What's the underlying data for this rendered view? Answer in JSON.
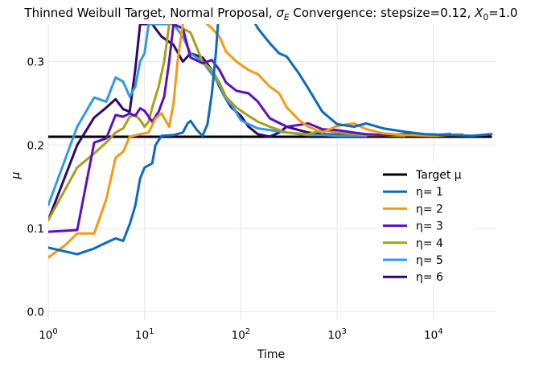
{
  "chart_data": {
    "type": "line",
    "title": "Thinned Weibull Target, Normal Proposal, σ_E Convergence: stepsize=0.12, X_0=1.0",
    "title_parts": {
      "prefix": "Thinned Weibull Target, Normal Proposal, ",
      "sigma": "σ",
      "sigma_sub": "E",
      "middle": " Convergence: stepsize=0.12, ",
      "x": "X",
      "x_sub": "0",
      "suffix": "=1.0"
    },
    "xlabel": "Time",
    "ylabel": "μ",
    "x_scale": "log",
    "xlim": [
      1,
      45000
    ],
    "ylim": [
      -0.01,
      0.345
    ],
    "x_ticks": [
      {
        "value": 1,
        "base": "10",
        "exp": "0"
      },
      {
        "value": 10,
        "base": "10",
        "exp": "1"
      },
      {
        "value": 100,
        "base": "10",
        "exp": "2"
      },
      {
        "value": 1000,
        "base": "10",
        "exp": "3"
      },
      {
        "value": 10000,
        "base": "10",
        "exp": "4"
      }
    ],
    "y_ticks": [
      {
        "value": 0.0,
        "label": "0.0"
      },
      {
        "value": 0.1,
        "label": "0.1"
      },
      {
        "value": 0.2,
        "label": "0.2"
      },
      {
        "value": 0.3,
        "label": "0.3"
      }
    ],
    "grid": true,
    "legend_position": "center-right",
    "target": {
      "name": "Target μ",
      "value": 0.21,
      "color": "#000000"
    },
    "series": [
      {
        "name": "η= 1",
        "color": "#0a6bbf",
        "points": [
          [
            1,
            0.077
          ],
          [
            2,
            0.069
          ],
          [
            3,
            0.076
          ],
          [
            4,
            0.083
          ],
          [
            5,
            0.088
          ],
          [
            6,
            0.085
          ],
          [
            7,
            0.105
          ],
          [
            8,
            0.127
          ],
          [
            9,
            0.16
          ],
          [
            10,
            0.173
          ],
          [
            12,
            0.178
          ],
          [
            13,
            0.2
          ],
          [
            15,
            0.211
          ],
          [
            20,
            0.212
          ],
          [
            25,
            0.215
          ],
          [
            28,
            0.226
          ],
          [
            30,
            0.229
          ],
          [
            35,
            0.218
          ],
          [
            40,
            0.211
          ],
          [
            45,
            0.225
          ],
          [
            50,
            0.262
          ],
          [
            55,
            0.31
          ],
          [
            60,
            0.37
          ],
          [
            100,
            0.38
          ],
          [
            120,
            0.36
          ],
          [
            150,
            0.34
          ],
          [
            200,
            0.322
          ],
          [
            250,
            0.31
          ],
          [
            300,
            0.306
          ],
          [
            400,
            0.286
          ],
          [
            500,
            0.268
          ],
          [
            700,
            0.24
          ],
          [
            1000,
            0.225
          ],
          [
            1500,
            0.222
          ],
          [
            2000,
            0.226
          ],
          [
            3000,
            0.22
          ],
          [
            5000,
            0.216
          ],
          [
            8000,
            0.213
          ],
          [
            15000,
            0.212
          ],
          [
            25000,
            0.211
          ],
          [
            40000,
            0.213
          ]
        ]
      },
      {
        "name": "η= 2",
        "color": "#f59a15",
        "points": [
          [
            1,
            0.065
          ],
          [
            1.5,
            0.08
          ],
          [
            2,
            0.094
          ],
          [
            3,
            0.094
          ],
          [
            4,
            0.135
          ],
          [
            5,
            0.185
          ],
          [
            6,
            0.192
          ],
          [
            7,
            0.21
          ],
          [
            9,
            0.213
          ],
          [
            11,
            0.215
          ],
          [
            13,
            0.232
          ],
          [
            15,
            0.238
          ],
          [
            18,
            0.222
          ],
          [
            20,
            0.25
          ],
          [
            22,
            0.3
          ],
          [
            25,
            0.345
          ],
          [
            30,
            0.36
          ],
          [
            40,
            0.35
          ],
          [
            50,
            0.34
          ],
          [
            60,
            0.33
          ],
          [
            70,
            0.312
          ],
          [
            90,
            0.3
          ],
          [
            120,
            0.29
          ],
          [
            150,
            0.285
          ],
          [
            200,
            0.27
          ],
          [
            250,
            0.262
          ],
          [
            300,
            0.245
          ],
          [
            400,
            0.23
          ],
          [
            500,
            0.222
          ],
          [
            700,
            0.215
          ],
          [
            1000,
            0.223
          ],
          [
            1500,
            0.226
          ],
          [
            2000,
            0.219
          ],
          [
            3000,
            0.214
          ],
          [
            5000,
            0.212
          ],
          [
            10000,
            0.211
          ],
          [
            20000,
            0.213
          ]
        ]
      },
      {
        "name": "η= 3",
        "color": "#5c10c4",
        "points": [
          [
            1,
            0.096
          ],
          [
            2,
            0.098
          ],
          [
            3,
            0.203
          ],
          [
            4,
            0.208
          ],
          [
            5,
            0.236
          ],
          [
            6,
            0.234
          ],
          [
            7,
            0.238
          ],
          [
            8,
            0.235
          ],
          [
            9,
            0.244
          ],
          [
            10,
            0.241
          ],
          [
            12,
            0.228
          ],
          [
            14,
            0.24
          ],
          [
            16,
            0.258
          ],
          [
            18,
            0.3
          ],
          [
            20,
            0.345
          ],
          [
            25,
            0.34
          ],
          [
            30,
            0.305
          ],
          [
            40,
            0.298
          ],
          [
            50,
            0.302
          ],
          [
            60,
            0.29
          ],
          [
            70,
            0.275
          ],
          [
            90,
            0.265
          ],
          [
            120,
            0.262
          ],
          [
            150,
            0.252
          ],
          [
            200,
            0.232
          ],
          [
            300,
            0.222
          ],
          [
            400,
            0.224
          ],
          [
            500,
            0.226
          ],
          [
            700,
            0.219
          ],
          [
            1000,
            0.218
          ],
          [
            1500,
            0.215
          ],
          [
            2000,
            0.213
          ],
          [
            3000,
            0.212
          ],
          [
            5000,
            0.213
          ],
          [
            10000,
            0.212
          ],
          [
            15000,
            0.213
          ]
        ]
      },
      {
        "name": "η= 4",
        "color": "#a8a01a",
        "points": [
          [
            1,
            0.11
          ],
          [
            2,
            0.173
          ],
          [
            3,
            0.19
          ],
          [
            4,
            0.203
          ],
          [
            5,
            0.215
          ],
          [
            6,
            0.22
          ],
          [
            7,
            0.234
          ],
          [
            8,
            0.236
          ],
          [
            9,
            0.23
          ],
          [
            10,
            0.222
          ],
          [
            11,
            0.228
          ],
          [
            12,
            0.245
          ],
          [
            14,
            0.27
          ],
          [
            16,
            0.3
          ],
          [
            18,
            0.345
          ],
          [
            20,
            0.345
          ],
          [
            30,
            0.335
          ],
          [
            40,
            0.3
          ],
          [
            50,
            0.29
          ],
          [
            60,
            0.275
          ],
          [
            70,
            0.258
          ],
          [
            90,
            0.245
          ],
          [
            120,
            0.235
          ],
          [
            150,
            0.228
          ],
          [
            200,
            0.222
          ],
          [
            300,
            0.215
          ],
          [
            500,
            0.213
          ],
          [
            700,
            0.218
          ],
          [
            1000,
            0.215
          ],
          [
            1500,
            0.213
          ],
          [
            2000,
            0.212
          ],
          [
            3000,
            0.212
          ],
          [
            5000,
            0.211
          ]
        ]
      },
      {
        "name": "η= 5",
        "color": "#3399e6",
        "points": [
          [
            1,
            0.128
          ],
          [
            2,
            0.222
          ],
          [
            3,
            0.257
          ],
          [
            4,
            0.252
          ],
          [
            5,
            0.281
          ],
          [
            6,
            0.276
          ],
          [
            7,
            0.258
          ],
          [
            8,
            0.27
          ],
          [
            9,
            0.3
          ],
          [
            10,
            0.31
          ],
          [
            11,
            0.345
          ],
          [
            20,
            0.345
          ],
          [
            25,
            0.33
          ],
          [
            30,
            0.31
          ],
          [
            40,
            0.3
          ],
          [
            50,
            0.285
          ],
          [
            60,
            0.272
          ],
          [
            70,
            0.255
          ],
          [
            80,
            0.248
          ],
          [
            100,
            0.23
          ],
          [
            120,
            0.225
          ],
          [
            150,
            0.22
          ],
          [
            200,
            0.218
          ],
          [
            300,
            0.215
          ],
          [
            400,
            0.213
          ],
          [
            500,
            0.212
          ],
          [
            700,
            0.212
          ],
          [
            1000,
            0.211
          ],
          [
            1500,
            0.211
          ],
          [
            2000,
            0.211
          ]
        ]
      },
      {
        "name": "η= 6",
        "color": "#2c0a6b",
        "points": [
          [
            1,
            0.11
          ],
          [
            2,
            0.2
          ],
          [
            3,
            0.233
          ],
          [
            4,
            0.245
          ],
          [
            5,
            0.255
          ],
          [
            6,
            0.243
          ],
          [
            7,
            0.24
          ],
          [
            8,
            0.29
          ],
          [
            9,
            0.345
          ],
          [
            12,
            0.345
          ],
          [
            15,
            0.33
          ],
          [
            20,
            0.32
          ],
          [
            25,
            0.3
          ],
          [
            30,
            0.31
          ],
          [
            40,
            0.305
          ],
          [
            50,
            0.29
          ],
          [
            60,
            0.27
          ],
          [
            70,
            0.255
          ],
          [
            80,
            0.245
          ],
          [
            100,
            0.235
          ],
          [
            120,
            0.222
          ],
          [
            150,
            0.213
          ],
          [
            200,
            0.21
          ],
          [
            250,
            0.215
          ],
          [
            300,
            0.222
          ],
          [
            400,
            0.218
          ],
          [
            500,
            0.215
          ],
          [
            700,
            0.213
          ],
          [
            1000,
            0.212
          ],
          [
            1500,
            0.211
          ],
          [
            2000,
            0.211
          ]
        ]
      }
    ]
  }
}
